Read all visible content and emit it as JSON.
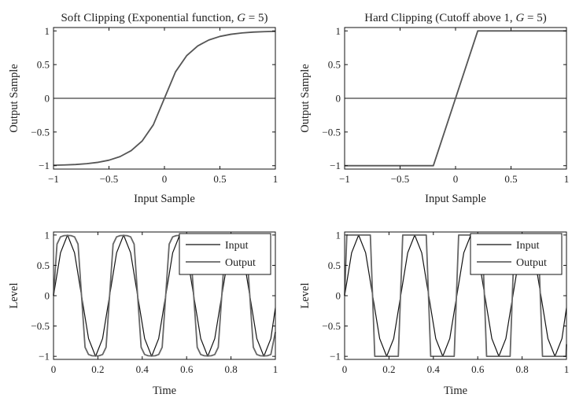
{
  "chart_data": [
    {
      "type": "line",
      "title": "Soft Clipping (Exponential function, G = 5)",
      "title_parts": [
        "Soft Clipping (Exponential function, ",
        "G",
        " = 5)"
      ],
      "xlabel": "Input Sample",
      "ylabel": "Output Sample",
      "xlim": [
        -1,
        1
      ],
      "ylim": [
        -1.05,
        1.05
      ],
      "xticks": [
        -1,
        -0.5,
        0,
        0.5,
        1
      ],
      "xtick_labels": [
        "−1",
        "−0.5",
        "0",
        "0.5",
        "1"
      ],
      "yticks": [
        -1,
        -0.5,
        0,
        0.5,
        1
      ],
      "ytick_labels": [
        "−1",
        "−0.5",
        "0",
        "0.5",
        "1"
      ],
      "grid": false,
      "zero_line": true,
      "series": [
        {
          "color": "#555555",
          "x": [
            -1,
            -0.9,
            -0.8,
            -0.7,
            -0.6,
            -0.5,
            -0.4,
            -0.3,
            -0.2,
            -0.1,
            0,
            0.1,
            0.2,
            0.3,
            0.4,
            0.5,
            0.6,
            0.7,
            0.8,
            0.9,
            1
          ],
          "y": [
            -0.993,
            -0.989,
            -0.982,
            -0.97,
            -0.95,
            -0.918,
            -0.865,
            -0.777,
            -0.632,
            -0.393,
            0,
            0.393,
            0.632,
            0.777,
            0.865,
            0.918,
            0.95,
            0.97,
            0.982,
            0.989,
            0.993
          ]
        }
      ]
    },
    {
      "type": "line",
      "title": "Hard Clipping (Cutoff above 1, G = 5)",
      "title_parts": [
        "Hard Clipping (Cutoff above 1, ",
        "G",
        " = 5)"
      ],
      "xlabel": "Input Sample",
      "ylabel": "Output Sample",
      "xlim": [
        -1,
        1
      ],
      "ylim": [
        -1.05,
        1.05
      ],
      "xticks": [
        -1,
        -0.5,
        0,
        0.5,
        1
      ],
      "xtick_labels": [
        "−1",
        "−0.5",
        "0",
        "0.5",
        "1"
      ],
      "yticks": [
        -1,
        -0.5,
        0,
        0.5,
        1
      ],
      "ytick_labels": [
        "−1",
        "−0.5",
        "0",
        "0.5",
        "1"
      ],
      "grid": false,
      "zero_line": true,
      "series": [
        {
          "color": "#555555",
          "x": [
            -1,
            -0.2,
            0.2,
            1
          ],
          "y": [
            -1,
            -1,
            1,
            1
          ]
        }
      ]
    },
    {
      "type": "line",
      "xlabel": "Time",
      "ylabel": "Level",
      "xlim": [
        0,
        1
      ],
      "ylim": [
        -1.05,
        1.05
      ],
      "xticks": [
        0,
        0.2,
        0.4,
        0.6,
        0.8,
        1
      ],
      "xtick_labels": [
        "0",
        "0.2",
        "0.4",
        "0.6",
        "0.8",
        "1"
      ],
      "yticks": [
        -1,
        -0.5,
        0,
        0.5,
        1
      ],
      "ytick_labels": [
        "−1",
        "−0.5",
        "0",
        "0.5",
        "1"
      ],
      "grid": false,
      "zero_line": false,
      "legend": "top-right",
      "series": [
        {
          "name": "Input",
          "color": "#111111",
          "x": [
            0,
            0.0316,
            0.0632,
            0.0948,
            0.1264,
            0.158,
            0.1896,
            0.2212,
            0.2528,
            0.2844,
            0.316,
            0.3476,
            0.3792,
            0.4108,
            0.4424,
            0.474,
            0.5056,
            0.5372,
            0.5688,
            0.6004,
            0.632,
            0.6636,
            0.6952,
            0.7268,
            0.7584,
            0.79,
            0.8216,
            0.8532,
            0.8848,
            0.9164,
            0.948,
            0.9796,
            1
          ],
          "y": [
            0,
            0.707,
            1,
            0.707,
            0,
            -0.707,
            -1,
            -0.707,
            0,
            0.707,
            1,
            0.707,
            0,
            -0.707,
            -1,
            -0.707,
            0,
            0.707,
            1,
            0.707,
            0,
            -0.707,
            -1,
            -0.707,
            0,
            0.707,
            1,
            0.707,
            0,
            -0.707,
            -1,
            -0.707,
            -0.2
          ]
        },
        {
          "name": "Output",
          "color": "#666666",
          "x": [
            0,
            0.0158,
            0.0316,
            0.0474,
            0.0632,
            0.079,
            0.0948,
            0.1106,
            0.1264,
            0.1422,
            0.158,
            0.1738,
            0.1896,
            0.2054,
            0.2212,
            0.237,
            0.2528,
            0.2686,
            0.2844,
            0.3002,
            0.316,
            0.3318,
            0.3476,
            0.3634,
            0.3792,
            0.395,
            0.4108,
            0.4266,
            0.4424,
            0.4582,
            0.474,
            0.4898,
            0.5056,
            0.5214,
            0.5372,
            0.553,
            0.5688,
            0.5846,
            0.6004,
            0.6162,
            0.632,
            0.6478,
            0.6636,
            0.6794,
            0.6952,
            0.711,
            0.7268,
            0.7426,
            0.7584,
            0.7742,
            0.79,
            0.8058,
            0.8216,
            0.8374,
            0.8532,
            0.869,
            0.8848,
            0.9006,
            0.9164,
            0.9322,
            0.948,
            0.9638,
            0.9796,
            1
          ],
          "y": [
            0,
            0.85,
            0.97,
            0.99,
            0.993,
            0.99,
            0.97,
            0.85,
            0,
            -0.85,
            -0.97,
            -0.99,
            -0.993,
            -0.99,
            -0.97,
            -0.85,
            0,
            0.85,
            0.97,
            0.99,
            0.993,
            0.99,
            0.97,
            0.85,
            0,
            -0.85,
            -0.97,
            -0.99,
            -0.993,
            -0.99,
            -0.97,
            -0.85,
            0,
            0.85,
            0.97,
            0.99,
            0.993,
            0.99,
            0.97,
            0.85,
            0,
            -0.85,
            -0.97,
            -0.99,
            -0.993,
            -0.99,
            -0.97,
            -0.85,
            0,
            0.85,
            0.97,
            0.99,
            0.993,
            0.99,
            0.97,
            0.85,
            0,
            -0.85,
            -0.97,
            -0.99,
            -0.993,
            -0.99,
            -0.97,
            -0.6
          ]
        }
      ]
    },
    {
      "type": "line",
      "xlabel": "Time",
      "ylabel": "Level",
      "xlim": [
        0,
        1
      ],
      "ylim": [
        -1.05,
        1.05
      ],
      "xticks": [
        0,
        0.2,
        0.4,
        0.6,
        0.8,
        1
      ],
      "xtick_labels": [
        "0",
        "0.2",
        "0.4",
        "0.6",
        "0.8",
        "1"
      ],
      "yticks": [
        -1,
        -0.5,
        0,
        0.5,
        1
      ],
      "ytick_labels": [
        "−1",
        "−0.5",
        "0",
        "0.5",
        "1"
      ],
      "grid": false,
      "zero_line": false,
      "legend": "top-right",
      "series": [
        {
          "name": "Input",
          "color": "#111111",
          "x": [
            0,
            0.0316,
            0.0632,
            0.0948,
            0.1264,
            0.158,
            0.1896,
            0.2212,
            0.2528,
            0.2844,
            0.316,
            0.3476,
            0.3792,
            0.4108,
            0.4424,
            0.474,
            0.5056,
            0.5372,
            0.5688,
            0.6004,
            0.632,
            0.6636,
            0.6952,
            0.7268,
            0.7584,
            0.79,
            0.8216,
            0.8532,
            0.8848,
            0.9164,
            0.948,
            0.9796,
            1
          ],
          "y": [
            0,
            0.707,
            1,
            0.707,
            0,
            -0.707,
            -1,
            -0.707,
            0,
            0.707,
            1,
            0.707,
            0,
            -0.707,
            -1,
            -0.707,
            0,
            0.707,
            1,
            0.707,
            0,
            -0.707,
            -1,
            -0.707,
            0,
            0.707,
            1,
            0.707,
            0,
            -0.707,
            -1,
            -0.707,
            -0.2
          ]
        },
        {
          "name": "Output",
          "color": "#666666",
          "x": [
            0,
            0.01,
            0.116,
            0.136,
            0.242,
            0.262,
            0.368,
            0.388,
            0.494,
            0.514,
            0.62,
            0.64,
            0.746,
            0.766,
            0.872,
            0.892,
            0.998,
            1
          ],
          "y": [
            0,
            1,
            1,
            -1,
            -1,
            1,
            1,
            -1,
            -1,
            1,
            1,
            -1,
            -1,
            1,
            1,
            -1,
            -1,
            -0.8
          ]
        }
      ]
    }
  ]
}
